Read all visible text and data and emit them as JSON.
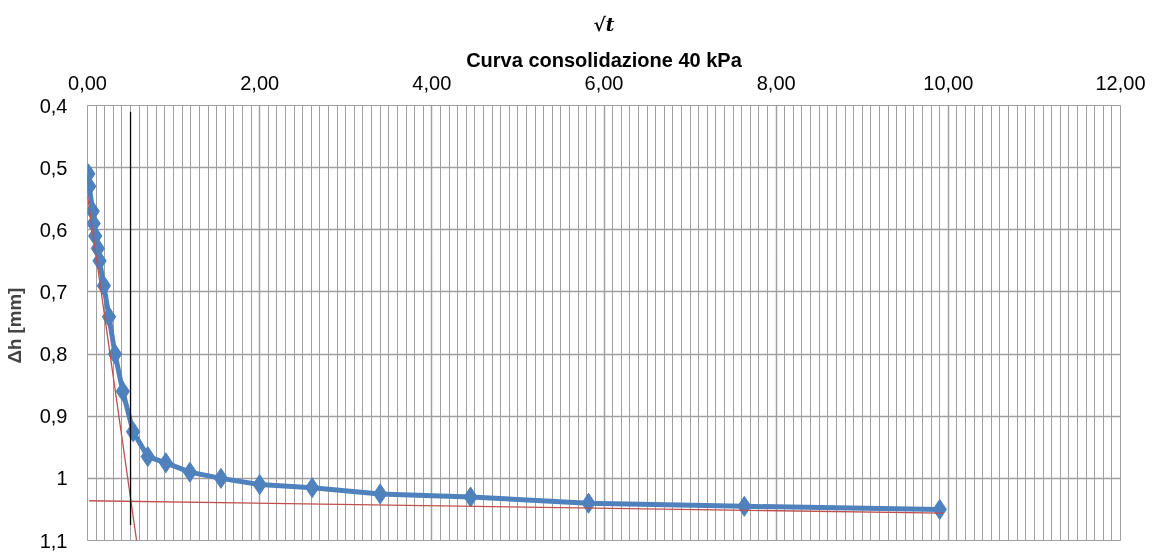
{
  "chart_data": {
    "type": "line",
    "title": "√t",
    "subtitle": "Curva consolidazione 40 kPa",
    "ylabel": "Δh  [mm]",
    "xlim": [
      0,
      12
    ],
    "xticks": [
      {
        "value": 0,
        "label": "0,00"
      },
      {
        "value": 2,
        "label": "2,00"
      },
      {
        "value": 4,
        "label": "4,00"
      },
      {
        "value": 6,
        "label": "6,00"
      },
      {
        "value": 8,
        "label": "8,00"
      },
      {
        "value": 10,
        "label": "10,00"
      },
      {
        "value": 12,
        "label": "12,00"
      }
    ],
    "ylim": [
      1.1,
      0.4
    ],
    "yticks": [
      {
        "value": 0.4,
        "label": "0,4"
      },
      {
        "value": 0.5,
        "label": "0,5"
      },
      {
        "value": 0.6,
        "label": "0,6"
      },
      {
        "value": 0.7,
        "label": "0,7"
      },
      {
        "value": 0.8,
        "label": "0,8"
      },
      {
        "value": 0.9,
        "label": "0,9"
      },
      1,
      {
        "value": 1.1,
        "label": "1,1"
      }
    ],
    "grid": true,
    "series": [
      {
        "color": "#4f81bd",
        "marker": "diamond",
        "x": [
          0.01,
          0.02,
          0.06,
          0.07,
          0.09,
          0.12,
          0.14,
          0.19,
          0.25,
          0.32,
          0.41,
          0.53,
          0.7,
          0.91,
          1.19,
          1.55,
          2.0,
          2.61,
          3.4,
          4.45,
          5.82,
          7.63,
          9.9
        ],
        "values": [
          0.51,
          0.53,
          0.57,
          0.59,
          0.61,
          0.63,
          0.65,
          0.69,
          0.74,
          0.8,
          0.86,
          0.925,
          0.965,
          0.975,
          0.99,
          1.0,
          1.01,
          1.015,
          1.025,
          1.03,
          1.04,
          1.045,
          1.05
        ]
      },
      {
        "color": "#c0504d",
        "marker": "none",
        "x": [
          0.0,
          0.57
        ],
        "values": [
          0.545,
          1.1
        ]
      },
      {
        "color": "#c0504d",
        "marker": "none",
        "x": [
          0.02,
          9.94
        ],
        "values": [
          1.036,
          1.056
        ]
      },
      {
        "color": "#000000",
        "marker": "none",
        "x": [
          0.5,
          0.5
        ],
        "values": [
          0.41,
          1.075
        ]
      }
    ]
  }
}
